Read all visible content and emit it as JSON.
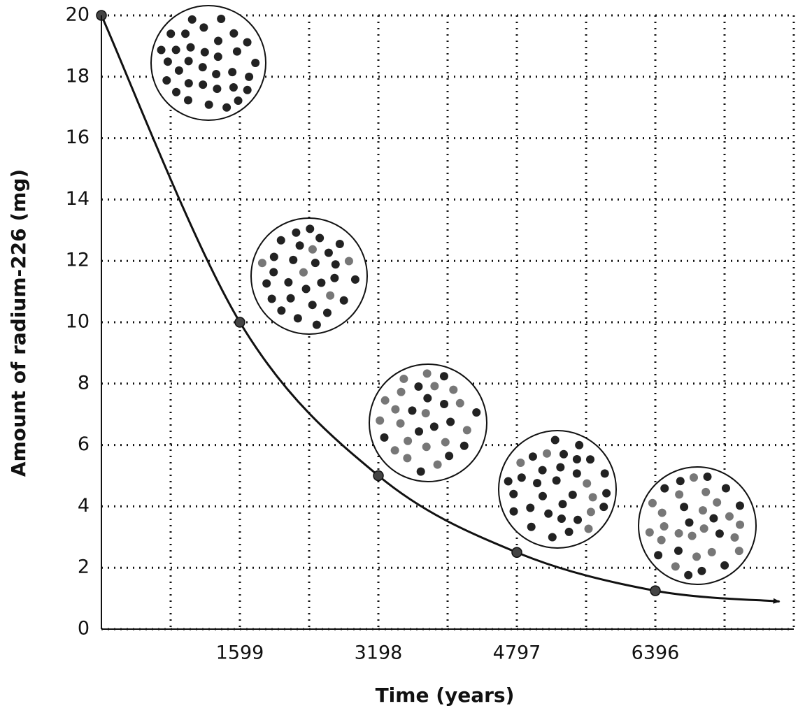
{
  "chart_data": {
    "type": "line",
    "x_label": "Time (years)",
    "y_label": "Amount of radium-226 (mg)",
    "xlim": [
      0,
      7995
    ],
    "ylim": [
      0,
      20
    ],
    "xticks": [
      1599,
      3198,
      4797,
      6396
    ],
    "x_minor_gridlines": [
      799.5,
      1599,
      2398.5,
      3198,
      3997.5,
      4797,
      5596.5,
      6396,
      7195.5,
      7995
    ],
    "yticks": [
      0,
      2,
      4,
      6,
      8,
      10,
      12,
      14,
      16,
      18,
      20
    ],
    "grid": true,
    "series": [
      {
        "kind": "curve",
        "color": "#111111",
        "x": [
          0,
          1599,
          3198,
          4797,
          6396,
          7830
        ],
        "values": [
          20,
          10,
          5,
          2.5,
          1.25,
          0.9
        ]
      },
      {
        "kind": "points",
        "color": "#444444",
        "x": [
          0,
          1599,
          3198,
          4797,
          6396
        ],
        "values": [
          20,
          10,
          5,
          2.5,
          1.25
        ]
      }
    ]
  }
}
